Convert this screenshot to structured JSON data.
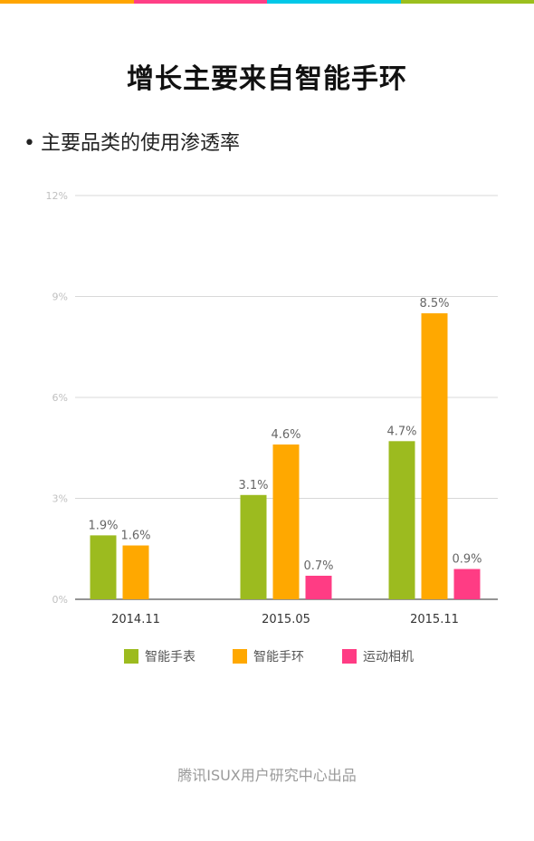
{
  "page": {
    "title": "增长主要来自智能手环",
    "subtitle": "主要品类的使用渗透率",
    "footer": "腾讯ISUX用户研究中心出品",
    "stripe_colors": [
      "#ffa500",
      "#ff3f86",
      "#00c8e8",
      "#9cbf1e"
    ]
  },
  "chart_data": {
    "type": "bar",
    "categories": [
      "2014.11",
      "2015.05",
      "2015.11"
    ],
    "series": [
      {
        "name": "智能手表",
        "color": "#9cbb1f",
        "values": [
          1.9,
          3.1,
          4.7
        ],
        "labels": [
          "1.9%",
          "3.1%",
          "4.7%"
        ]
      },
      {
        "name": "智能手环",
        "color": "#ffa800",
        "values": [
          1.6,
          4.6,
          8.5
        ],
        "labels": [
          "1.6%",
          "4.6%",
          "8.5%"
        ]
      },
      {
        "name": "运动相机",
        "color": "#ff3c84",
        "values": [
          null,
          0.7,
          0.9
        ],
        "labels": [
          "",
          "0.7%",
          "0.9%"
        ]
      }
    ],
    "yticks": [
      "0%",
      "3%",
      "6%",
      "9%",
      "12%"
    ],
    "ytick_values": [
      0,
      3,
      6,
      9,
      12
    ],
    "ylim": [
      0,
      12
    ],
    "grid": true,
    "legend_position": "bottom"
  }
}
